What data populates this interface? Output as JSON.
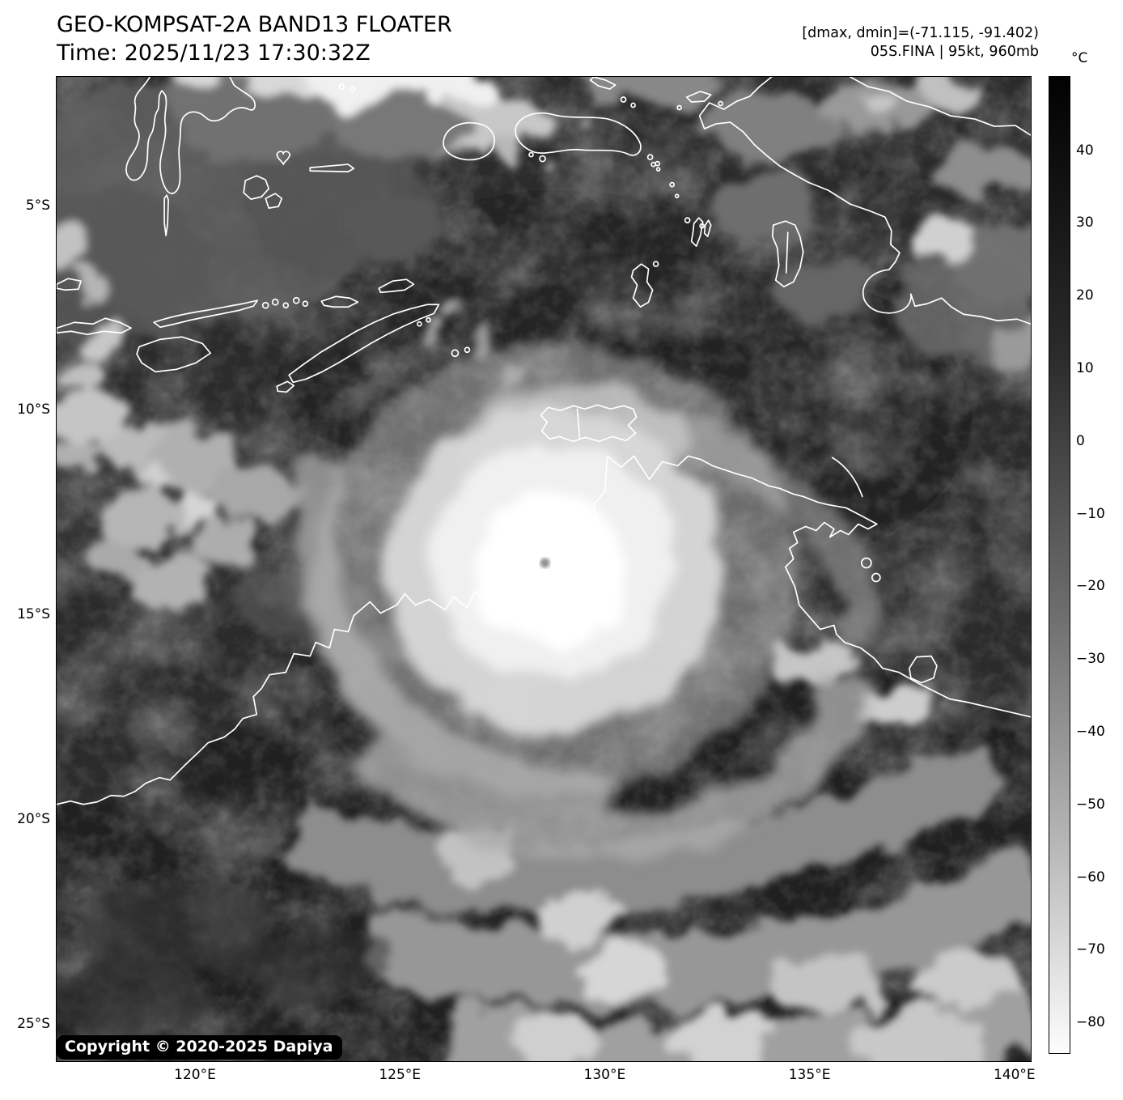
{
  "header": {
    "title": "GEO-KOMPSAT-2A BAND13 FLOATER",
    "time": "Time: 2025/11/23 17:30:32Z",
    "dmax_dmin": "[dmax, dmin]=(-71.115, -91.402)",
    "storm_info": "05S.FINA | 95kt, 960mb"
  },
  "colorbar": {
    "unit": "°C",
    "ticks": [
      "40",
      "30",
      "20",
      "10",
      "0",
      "−10",
      "−20",
      "−30",
      "−40",
      "−50",
      "−60",
      "−70",
      "−80"
    ]
  },
  "axes": {
    "lat_ticks": [
      "5°S",
      "10°S",
      "15°S",
      "20°S",
      "25°S"
    ],
    "lon_ticks": [
      "120°E",
      "125°E",
      "130°E",
      "135°E",
      "140°E"
    ]
  },
  "map": {
    "copyright": "Copyright © 2020-2025 Dapiya"
  }
}
